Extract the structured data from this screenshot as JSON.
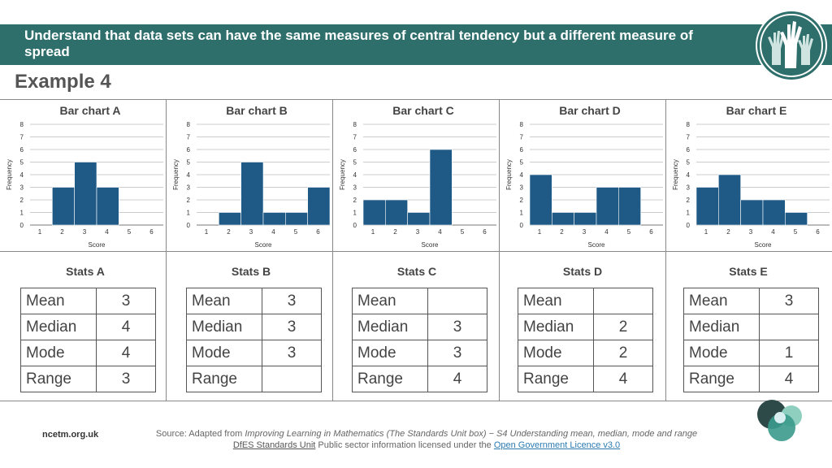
{
  "header": {
    "title": "Understand that data sets can have the same measures of central tendency but a different measure of spread"
  },
  "example_title": "Example 4",
  "chart_data": [
    {
      "type": "bar",
      "title": "Bar chart A",
      "xlabel": "Score",
      "ylabel": "Frequency",
      "categories": [
        1,
        2,
        3,
        4,
        5,
        6
      ],
      "values": [
        0,
        3,
        5,
        3,
        0,
        0
      ],
      "ylim": [
        0,
        8
      ],
      "yticks": [
        0,
        1,
        2,
        3,
        4,
        5,
        6,
        7,
        8
      ],
      "xticks": [
        1,
        2,
        3,
        4,
        5,
        6
      ],
      "color": "#1f5a87",
      "grid": true
    },
    {
      "type": "bar",
      "title": "Bar chart B",
      "xlabel": "Score",
      "ylabel": "Frequency",
      "categories": [
        1,
        2,
        3,
        4,
        5,
        6
      ],
      "values": [
        0,
        1,
        5,
        1,
        1,
        3
      ],
      "ylim": [
        0,
        8
      ],
      "yticks": [
        0,
        1,
        2,
        3,
        4,
        5,
        6,
        7,
        8
      ],
      "xticks": [
        1,
        2,
        3,
        4,
        5,
        6
      ],
      "color": "#1f5a87",
      "grid": true
    },
    {
      "type": "bar",
      "title": "Bar chart C",
      "xlabel": "Score",
      "ylabel": "Frequency",
      "categories": [
        1,
        2,
        3,
        4,
        5,
        6
      ],
      "values": [
        2,
        2,
        1,
        6,
        0,
        0
      ],
      "ylim": [
        0,
        8
      ],
      "yticks": [
        0,
        1,
        2,
        3,
        4,
        5,
        6,
        7,
        8
      ],
      "xticks": [
        1,
        2,
        3,
        4,
        5,
        6
      ],
      "color": "#1f5a87",
      "grid": true
    },
    {
      "type": "bar",
      "title": "Bar chart D",
      "xlabel": "Score",
      "ylabel": "Frequency",
      "categories": [
        1,
        2,
        3,
        4,
        5,
        6
      ],
      "values": [
        4,
        1,
        1,
        3,
        3,
        0
      ],
      "ylim": [
        0,
        8
      ],
      "yticks": [
        0,
        1,
        2,
        3,
        4,
        5,
        6,
        7,
        8
      ],
      "xticks": [
        1,
        2,
        3,
        4,
        5,
        6
      ],
      "color": "#1f5a87",
      "grid": true
    },
    {
      "type": "bar",
      "title": "Bar chart E",
      "xlabel": "Score",
      "ylabel": "Frequency",
      "categories": [
        1,
        2,
        3,
        4,
        5,
        6
      ],
      "values": [
        3,
        4,
        2,
        2,
        1,
        0
      ],
      "ylim": [
        0,
        8
      ],
      "yticks": [
        0,
        1,
        2,
        3,
        4,
        5,
        6,
        7,
        8
      ],
      "xticks": [
        1,
        2,
        3,
        4,
        5,
        6
      ],
      "color": "#1f5a87",
      "grid": true
    }
  ],
  "stats": [
    {
      "title": "Stats A",
      "rows": [
        {
          "label": "Mean",
          "value": "3"
        },
        {
          "label": "Median",
          "value": "4"
        },
        {
          "label": "Mode",
          "value": "4"
        },
        {
          "label": "Range",
          "value": "3"
        }
      ]
    },
    {
      "title": "Stats B",
      "rows": [
        {
          "label": "Mean",
          "value": "3"
        },
        {
          "label": "Median",
          "value": "3"
        },
        {
          "label": "Mode",
          "value": "3"
        },
        {
          "label": "Range",
          "value": ""
        }
      ]
    },
    {
      "title": "Stats C",
      "rows": [
        {
          "label": "Mean",
          "value": ""
        },
        {
          "label": "Median",
          "value": "3"
        },
        {
          "label": "Mode",
          "value": "3"
        },
        {
          "label": "Range",
          "value": "4"
        }
      ]
    },
    {
      "title": "Stats D",
      "rows": [
        {
          "label": "Mean",
          "value": ""
        },
        {
          "label": "Median",
          "value": "2"
        },
        {
          "label": "Mode",
          "value": "2"
        },
        {
          "label": "Range",
          "value": "4"
        }
      ]
    },
    {
      "title": "Stats E",
      "rows": [
        {
          "label": "Mean",
          "value": "3"
        },
        {
          "label": "Median",
          "value": ""
        },
        {
          "label": "Mode",
          "value": "1"
        },
        {
          "label": "Range",
          "value": "4"
        }
      ]
    }
  ],
  "footer": {
    "site": "ncetm.org.uk",
    "source_prefix": "Source: Adapted from ",
    "source_italic": "Improving Learning in Mathematics (The Standards Unit box) − S4 Understanding mean, median, mode and range",
    "dfes": "DfES Standards Unit",
    "licence_text": " Public sector information licensed under the ",
    "ogl": "Open Government Licence v3.0"
  },
  "colors": {
    "banner": "#2e6e6b",
    "bar": "#1f5a87",
    "logo_ring": "#2e6e6b"
  }
}
